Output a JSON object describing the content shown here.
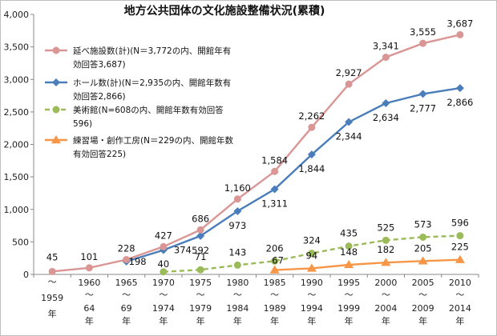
{
  "chart_data": {
    "type": "line",
    "title": "地方公共団体の文化施設整備状況(累積)",
    "xlabel": "",
    "ylabel": "",
    "ylim": [
      0,
      4000
    ],
    "yticks": [
      "0",
      "500",
      "1,000",
      "1,500",
      "2,000",
      "2,500",
      "3,000",
      "3,500",
      "4,000"
    ],
    "ytick_values": [
      0,
      500,
      1000,
      1500,
      2000,
      2500,
      3000,
      3500,
      4000
    ],
    "grid": false,
    "legend_position": "top-left",
    "categories": [
      [
        "～",
        "1959",
        "年"
      ],
      [
        "1960",
        "～",
        "64",
        "年"
      ],
      [
        "1965",
        "～",
        "69",
        "年"
      ],
      [
        "1970",
        "～",
        "1974",
        "年"
      ],
      [
        "1975",
        "～",
        "1979",
        "年"
      ],
      [
        "1980",
        "～",
        "1984",
        "年"
      ],
      [
        "1985",
        "～",
        "1989",
        "年"
      ],
      [
        "1990",
        "～",
        "1994",
        "年"
      ],
      [
        "1995",
        "～",
        "1999",
        "年"
      ],
      [
        "2000",
        "～",
        "2004",
        "年"
      ],
      [
        "2005",
        "～",
        "2009",
        "年"
      ],
      [
        "2010",
        "～",
        "2014",
        "年"
      ]
    ],
    "series": [
      {
        "name": [
          "延べ施設数(計)(N＝3,772の内、開館年有",
          "効回答3,687)"
        ],
        "color": "#d99694",
        "marker": "circle",
        "dashed": false,
        "labels_above": true,
        "values": [
          45,
          101,
          228,
          427,
          686,
          1160,
          1584,
          2262,
          2927,
          3341,
          3555,
          3687
        ]
      },
      {
        "name": [
          "ホール数(計)(N＝2,935の内、開館年数有",
          "効回答2,866)"
        ],
        "color": "#4a7ebb",
        "marker": "diamond",
        "dashed": false,
        "labels_above": false,
        "values": [
          null,
          null,
          198,
          374,
          592,
          973,
          1311,
          1844,
          2344,
          2634,
          2777,
          2866
        ]
      },
      {
        "name": [
          "美術館(N=608の内、開館年数有効回答",
          "596)"
        ],
        "color": "#9bbb59",
        "marker": "circle",
        "dashed": true,
        "labels_above": true,
        "values": [
          null,
          null,
          null,
          40,
          71,
          143,
          206,
          324,
          435,
          525,
          573,
          596
        ]
      },
      {
        "name": [
          "練習場・創作工房(N＝229の内、開館年数",
          "有効回答225)"
        ],
        "color": "#f79646",
        "marker": "triangle",
        "dashed": false,
        "labels_above": true,
        "values": [
          null,
          null,
          null,
          null,
          null,
          null,
          67,
          94,
          148,
          182,
          205,
          225
        ]
      }
    ]
  }
}
